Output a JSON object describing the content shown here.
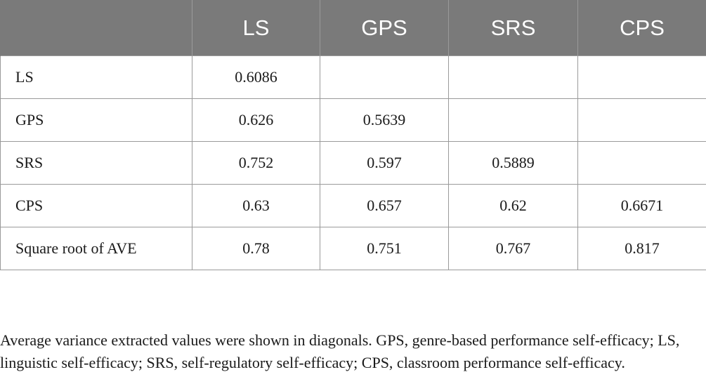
{
  "table": {
    "headers": [
      "",
      "LS",
      "GPS",
      "SRS",
      "CPS"
    ],
    "rows": [
      {
        "label": "LS",
        "cells": [
          "0.6086",
          "",
          "",
          ""
        ]
      },
      {
        "label": "GPS",
        "cells": [
          "0.626",
          "0.5639",
          "",
          ""
        ]
      },
      {
        "label": "SRS",
        "cells": [
          "0.752",
          "0.597",
          "0.5889",
          ""
        ]
      },
      {
        "label": "CPS",
        "cells": [
          "0.63",
          "0.657",
          "0.62",
          "0.6671"
        ]
      },
      {
        "label": "Square root of AVE",
        "cells": [
          "0.78",
          "0.751",
          "0.767",
          "0.817"
        ]
      }
    ]
  },
  "footnote": "Average variance extracted values were shown in diagonals. GPS, genre-based performance self-efficacy; LS, linguistic self-efficacy; SRS, self-regulatory self-efficacy; CPS, classroom performance self-efficacy.",
  "colors": {
    "header_background": "#7a7a7a",
    "header_text": "#ffffff",
    "grid_lines": "#9a9a9a"
  }
}
